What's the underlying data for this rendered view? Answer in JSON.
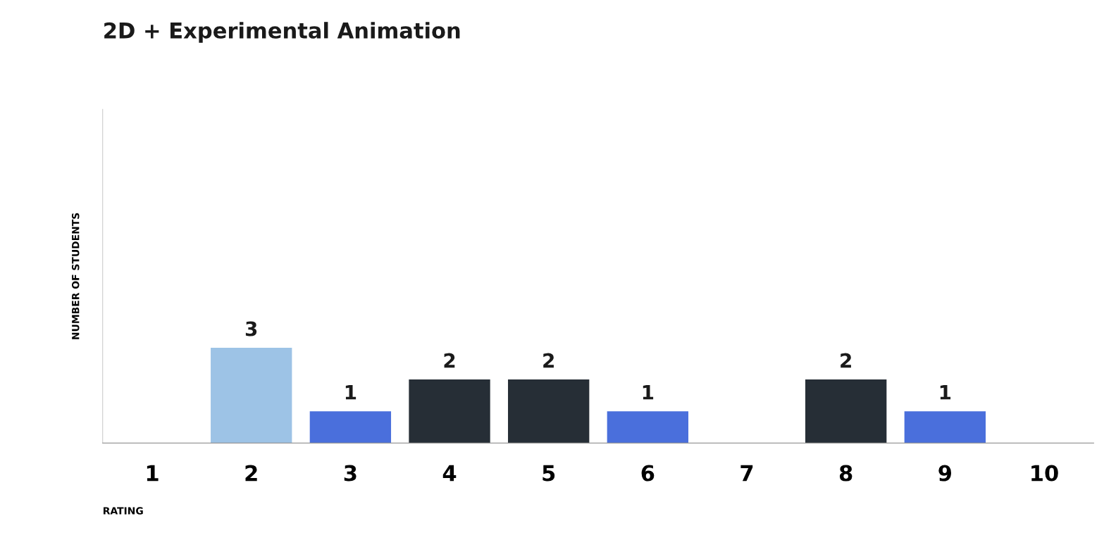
{
  "chart_data": {
    "type": "bar",
    "title": "2D + Experimental Animation",
    "xlabel": "RATING",
    "ylabel": "NUMBER OF STUDENTS",
    "categories": [
      "1",
      "2",
      "3",
      "4",
      "5",
      "6",
      "7",
      "8",
      "9",
      "10"
    ],
    "values": [
      0,
      3,
      1,
      2,
      2,
      1,
      0,
      2,
      1,
      0
    ],
    "colors": [
      "#262e36",
      "#9dc3e6",
      "#4a6fdc",
      "#262e36",
      "#262e36",
      "#4a6fdc",
      "#262e36",
      "#262e36",
      "#4a6fdc",
      "#262e36"
    ],
    "value_labels": [
      null,
      "3",
      "1",
      "2",
      "2",
      "1",
      null,
      "2",
      "1",
      null
    ],
    "ylim": [
      0,
      10.5
    ],
    "grid": false,
    "legend": false
  }
}
